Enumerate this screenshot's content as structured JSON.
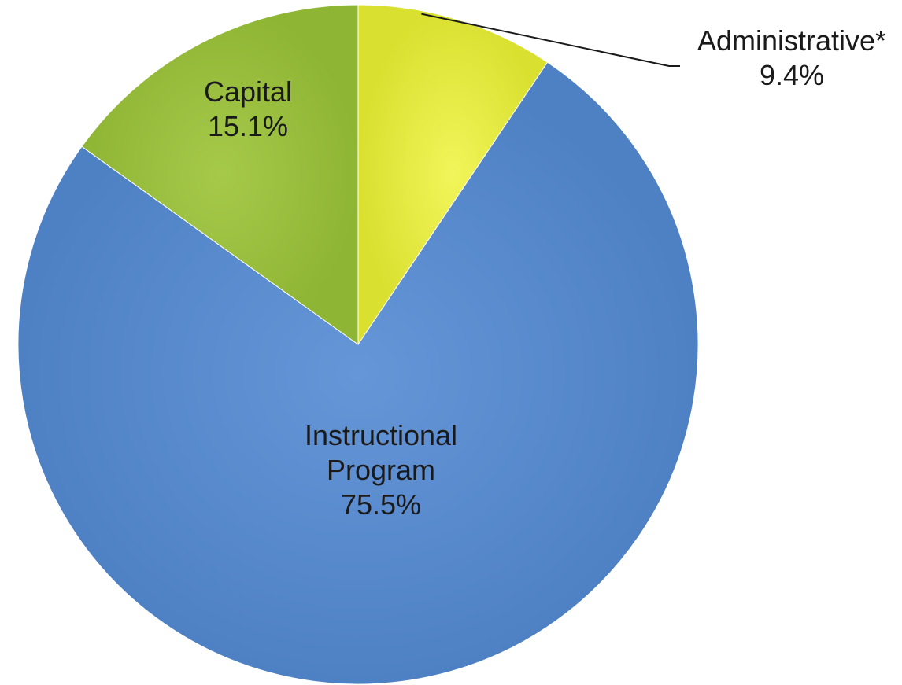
{
  "chart_data": {
    "type": "pie",
    "title": "",
    "start_angle_deg": 0,
    "direction": "clockwise",
    "slices": [
      {
        "name": "Administrative*",
        "value": 9.4,
        "value_label": "9.4%",
        "color": "#e6ec3c",
        "label_lines": [
          "Administrative*",
          "9.4%"
        ]
      },
      {
        "name": "Instructional Program",
        "value": 75.5,
        "value_label": "75.5%",
        "color": "#5a8cd1",
        "label_lines": [
          "Instructional",
          "Program",
          "75.5%"
        ]
      },
      {
        "name": "Capital",
        "value": 15.1,
        "value_label": "15.1%",
        "color": "#9cc23c",
        "label_lines": [
          "Capital",
          "15.1%"
        ]
      }
    ],
    "legend": "none",
    "data_labels": "category and percentage"
  }
}
